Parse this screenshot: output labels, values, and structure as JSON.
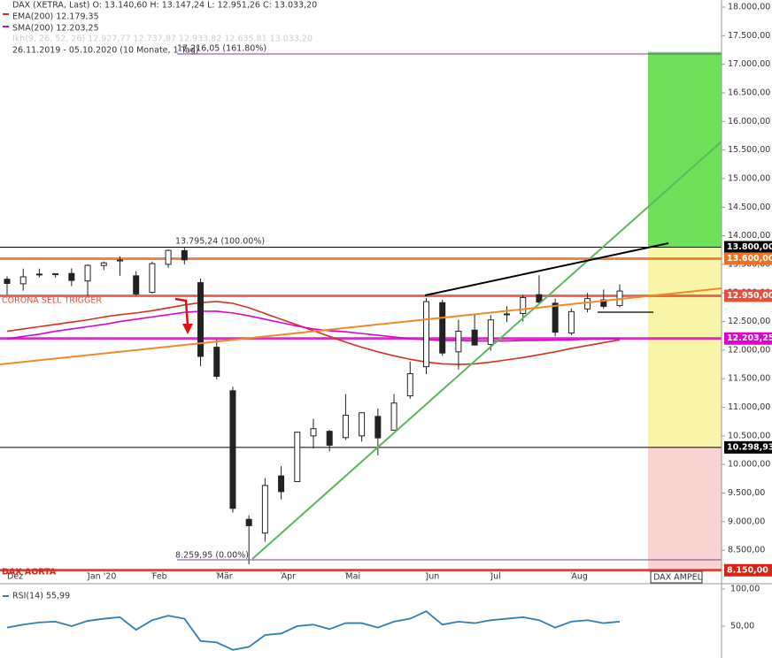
{
  "chart_data": [
    {
      "type": "candlestick",
      "header": {
        "instrument": "DAX (XETRA, Last)  O: 13.140,60  H: 13.147,24  L: 12.951,26  C: 13.033,20",
        "ema": "EMA(200)  12.179,35",
        "sma": "SMA(200)  12.203,25",
        "ichimoku": "Ikh(9, 26, 52, 26)  12.927,77  12.737,87  12.933,82  12.635,81  13.033,20",
        "range": "26.11.2019 - 05.10.2020  (10 Monate, 1 Tag)"
      },
      "annotations": {
        "fib_top": "17.216,05 (161.80%)",
        "fib_high": "13.795,24 (100.00%)",
        "fib_low": "8.259,95 (0.00%)",
        "trigger": "CORONA SELL TRIGGER",
        "aorta": "DAX AORTA",
        "ampel": "DAX AMPEL"
      },
      "categories": [
        "Dez",
        null,
        null,
        null,
        null,
        "Jan '20",
        null,
        null,
        null,
        "Feb",
        null,
        null,
        null,
        "Mär",
        null,
        null,
        null,
        "Apr",
        null,
        null,
        null,
        "Mai",
        null,
        null,
        null,
        null,
        "Jun",
        null,
        null,
        null,
        "Jul",
        null,
        null,
        null,
        null,
        "Aug",
        null,
        null,
        null
      ],
      "open": [
        13240,
        13160,
        13330,
        13320,
        13340,
        13210,
        13480,
        13560,
        13300,
        13010,
        13500,
        13740,
        13180,
        12050,
        11290,
        9040,
        8800,
        9800,
        9700,
        10500,
        10580,
        10470,
        10500,
        10840,
        10600,
        11200,
        11710,
        12830,
        11970,
        12350,
        12100,
        12620,
        12640,
        12970,
        12820,
        12300,
        12720,
        12880,
        12780
      ],
      "high": [
        13290,
        13425,
        13425,
        13340,
        13430,
        13500,
        13550,
        13640,
        13380,
        13550,
        13760,
        13795,
        13250,
        12190,
        11360,
        9110,
        9760,
        9970,
        10570,
        10800,
        10600,
        11230,
        10910,
        10980,
        11230,
        11800,
        12910,
        12880,
        12530,
        12630,
        12610,
        12770,
        12960,
        13310,
        12900,
        12730,
        13000,
        13060,
        13150
      ],
      "low": [
        12970,
        13040,
        13270,
        13270,
        13120,
        12950,
        13400,
        13300,
        12950,
        12990,
        13440,
        13500,
        11720,
        11490,
        9160,
        8255,
        8650,
        9390,
        9700,
        10280,
        10230,
        10430,
        10400,
        10160,
        10600,
        11150,
        11580,
        11900,
        11660,
        12080,
        11990,
        12490,
        12500,
        12800,
        12240,
        12260,
        12660,
        12720,
        12750
      ],
      "close": [
        13166,
        13282,
        13318,
        13337,
        13219,
        13483,
        13526,
        13577,
        12982,
        13513,
        13744,
        13579,
        11890,
        11542,
        9232,
        8929,
        9633,
        9525,
        10565,
        10626,
        10336,
        10861,
        10904,
        10465,
        11074,
        11587,
        12848,
        11949,
        12331,
        12089,
        12528,
        12633,
        12920,
        12838,
        12313,
        12674,
        12901,
        12765,
        13033
      ],
      "series": [
        {
          "name": "EMA(200)",
          "color": "#d9301e",
          "values": [
            12330,
            12370,
            12410,
            12450,
            12490,
            12530,
            12580,
            12620,
            12650,
            12690,
            12740,
            12790,
            12830,
            12850,
            12820,
            12740,
            12640,
            12540,
            12440,
            12340,
            12240,
            12140,
            12050,
            11970,
            11900,
            11840,
            11790,
            11760,
            11750,
            11760,
            11790,
            11830,
            11870,
            11920,
            11970,
            12030,
            12080,
            12130,
            12179.35
          ]
        },
        {
          "name": "SMA(200)",
          "color": "#e000d0",
          "values": [
            12200,
            12240,
            12280,
            12330,
            12370,
            12410,
            12450,
            12500,
            12540,
            12580,
            12620,
            12660,
            12680,
            12680,
            12650,
            12600,
            12540,
            12480,
            12420,
            12370,
            12340,
            12320,
            12290,
            12260,
            12230,
            12200,
            12180,
            12170,
            12170,
            12160,
            12160,
            12160,
            12170,
            12170,
            12175,
            12180,
            12190,
            12195,
            12203.25
          ]
        }
      ],
      "levels": [
        {
          "value": 13800,
          "label": "13.800,00",
          "color": "#000000"
        },
        {
          "value": 13600,
          "label": "13.600,00",
          "color": "#f07020"
        },
        {
          "value": 12950,
          "label": "12.950,00",
          "color": "#e8503c"
        },
        {
          "value": 12203.25,
          "label": "12.203,25",
          "color": "#e000d0"
        },
        {
          "value": 10298.93,
          "label": "10.298,93",
          "color": "#000000"
        },
        {
          "value": 8150,
          "label": "8.150,00",
          "color": "#e02010"
        }
      ],
      "zones": [
        {
          "from": 13800,
          "to": 17216.05,
          "color": "#6ee05a"
        },
        {
          "from": 10298.93,
          "to": 13800,
          "color": "#f8f4a8"
        },
        {
          "from": 8150,
          "to": 10298.93,
          "color": "#fad2d2"
        }
      ],
      "ylim": [
        8100,
        18000
      ],
      "yticks": [
        {
          "value": 8500,
          "label": "8.500,00"
        },
        {
          "value": 9000,
          "label": "9.000,00"
        },
        {
          "value": 9500,
          "label": "9.500,00"
        },
        {
          "value": 10000,
          "label": "10.000,00"
        },
        {
          "value": 10500,
          "label": "10.500,00"
        },
        {
          "value": 11000,
          "label": "11.000,00"
        },
        {
          "value": 11500,
          "label": "11.500,00"
        },
        {
          "value": 12000,
          "label": "12.000,00"
        },
        {
          "value": 12500,
          "label": "12.500,00"
        },
        {
          "value": 13000,
          "label": "13.000,00"
        },
        {
          "value": 13500,
          "label": "13.500,00"
        },
        {
          "value": 14000,
          "label": "14.000,00"
        },
        {
          "value": 14500,
          "label": "14.500,00"
        },
        {
          "value": 15000,
          "label": "15.000,00"
        },
        {
          "value": 15500,
          "label": "15.500,00"
        },
        {
          "value": 16000,
          "label": "16.000,00"
        },
        {
          "value": 16500,
          "label": "16.500,00"
        },
        {
          "value": 17000,
          "label": "17.000,00"
        },
        {
          "value": 17500,
          "label": "17.500,00"
        },
        {
          "value": 18000,
          "label": "18.000,00"
        }
      ]
    },
    {
      "type": "line",
      "name": "RSI(14)  55,99",
      "color": "#2f7fb8",
      "values": [
        48,
        52,
        55,
        56,
        50,
        57,
        60,
        62,
        45,
        58,
        64,
        60,
        30,
        28,
        18,
        22,
        38,
        40,
        50,
        52,
        46,
        54,
        54,
        48,
        56,
        60,
        70,
        52,
        56,
        54,
        58,
        60,
        62,
        58,
        48,
        56,
        58,
        54,
        55.99
      ],
      "ylim": [
        7,
        100
      ],
      "yticks": [
        {
          "value": 50,
          "label": "50,00"
        },
        {
          "value": 100,
          "label": "100,00"
        }
      ]
    }
  ]
}
